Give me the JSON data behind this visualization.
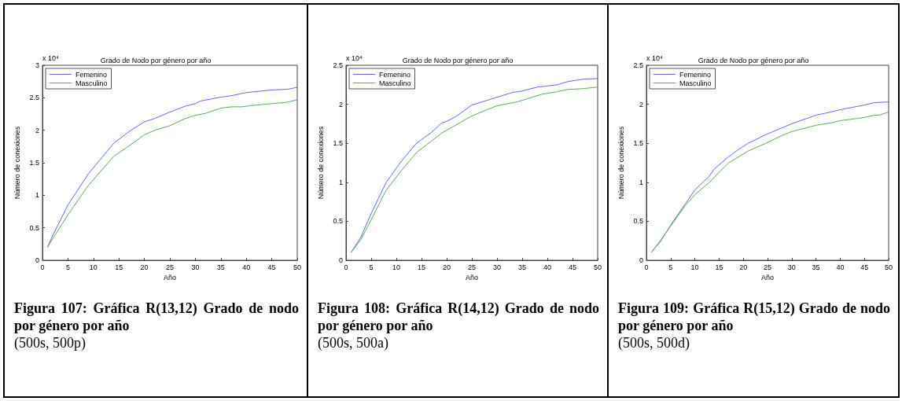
{
  "chart_data": [
    {
      "type": "line",
      "title": "Grado de Nodo por género por año",
      "xlabel": "Año",
      "ylabel": "Número de conexiones",
      "annotations": [
        "x 10⁴",
        "Figura 107: Gráfica R(13,12) Grado de nodo por género por año",
        "(500s, 500p)"
      ],
      "xlim": [
        0,
        50
      ],
      "xticks": [
        0,
        5,
        10,
        15,
        20,
        25,
        30,
        35,
        40,
        45,
        50
      ],
      "ylim": [
        0,
        3
      ],
      "yticks": [
        0,
        0.5,
        1,
        1.5,
        2,
        2.5,
        3
      ],
      "legend": "top left",
      "grid": false,
      "series": [
        {
          "name": "Femenino",
          "color": "#6666ff",
          "x": [
            1,
            2,
            5,
            9,
            14,
            17,
            20,
            22,
            25,
            28,
            30,
            31,
            35,
            37,
            40,
            45,
            48,
            50
          ],
          "values": [
            0.2,
            0.38,
            0.85,
            1.33,
            1.8,
            1.98,
            2.13,
            2.18,
            2.28,
            2.37,
            2.41,
            2.45,
            2.51,
            2.53,
            2.58,
            2.62,
            2.63,
            2.66
          ]
        },
        {
          "name": "Masculino",
          "color": "#55b055",
          "x": [
            1,
            2,
            5,
            9,
            14,
            17,
            20,
            22,
            25,
            28,
            30,
            32,
            35,
            37,
            39,
            41,
            45,
            48,
            50
          ],
          "values": [
            0.2,
            0.33,
            0.7,
            1.15,
            1.6,
            1.76,
            1.93,
            2.0,
            2.07,
            2.18,
            2.23,
            2.26,
            2.34,
            2.36,
            2.36,
            2.38,
            2.41,
            2.43,
            2.47
          ]
        }
      ]
    },
    {
      "type": "line",
      "title": "Grado de Nodo por género por año",
      "xlabel": "Año",
      "ylabel": "Número de conexiones",
      "annotations": [
        "x 10⁴",
        "Figura 108: Gráfica R(14,12) Grado de nodo por género por año",
        "(500s, 500a)"
      ],
      "xlim": [
        0,
        50
      ],
      "xticks": [
        0,
        5,
        10,
        15,
        20,
        25,
        30,
        35,
        40,
        45,
        50
      ],
      "ylim": [
        0,
        2.5
      ],
      "yticks": [
        0,
        0.5,
        1,
        1.5,
        2,
        2.5
      ],
      "legend": "top left",
      "grid": false,
      "series": [
        {
          "name": "Femenino",
          "color": "#6666ff",
          "x": [
            1,
            3,
            5,
            8,
            11,
            14,
            17,
            19,
            20,
            22,
            25,
            27,
            30,
            33,
            35,
            38,
            42,
            44,
            47,
            50
          ],
          "values": [
            0.1,
            0.3,
            0.6,
            1.0,
            1.27,
            1.5,
            1.64,
            1.76,
            1.78,
            1.85,
            1.99,
            2.03,
            2.09,
            2.15,
            2.17,
            2.22,
            2.25,
            2.29,
            2.32,
            2.33
          ]
        },
        {
          "name": "Masculino",
          "color": "#55b055",
          "x": [
            1,
            3,
            5,
            8,
            11,
            14,
            17,
            19,
            22,
            25,
            28,
            30,
            34,
            36,
            39,
            42,
            44,
            47,
            50
          ],
          "values": [
            0.1,
            0.27,
            0.52,
            0.9,
            1.15,
            1.38,
            1.53,
            1.63,
            1.74,
            1.85,
            1.93,
            1.98,
            2.03,
            2.07,
            2.13,
            2.16,
            2.19,
            2.2,
            2.22
          ]
        }
      ]
    },
    {
      "type": "line",
      "title": "Grado de Nodo por género por año",
      "xlabel": "Año",
      "ylabel": "Número de conexiones",
      "annotations": [
        "x 10⁴",
        "Figura 109: Gráfica R(15,12) Grado de nodo por género por año",
        "(500s, 500d)"
      ],
      "xlim": [
        0,
        50
      ],
      "xticks": [
        0,
        5,
        10,
        15,
        20,
        25,
        30,
        35,
        40,
        45,
        50
      ],
      "ylim": [
        0,
        2.5
      ],
      "yticks": [
        0,
        0.5,
        1,
        1.5,
        2,
        2.5
      ],
      "legend": "top left",
      "grid": false,
      "series": [
        {
          "name": "Femenino",
          "color": "#6666ff",
          "x": [
            1,
            3,
            5,
            8,
            10,
            13,
            14,
            17,
            19,
            21,
            25,
            30,
            35,
            38,
            40,
            45,
            47,
            50
          ],
          "values": [
            0.1,
            0.25,
            0.45,
            0.72,
            0.9,
            1.08,
            1.17,
            1.33,
            1.42,
            1.5,
            1.62,
            1.75,
            1.86,
            1.9,
            1.93,
            1.99,
            2.02,
            2.03
          ]
        },
        {
          "name": "Masculino",
          "color": "#55b055",
          "x": [
            1,
            3,
            5,
            8,
            10,
            13,
            15,
            17,
            21,
            25,
            28,
            30,
            35,
            38,
            40,
            45,
            47,
            48,
            50
          ],
          "values": [
            0.1,
            0.26,
            0.44,
            0.7,
            0.84,
            1.0,
            1.13,
            1.25,
            1.4,
            1.51,
            1.6,
            1.65,
            1.73,
            1.76,
            1.79,
            1.83,
            1.86,
            1.86,
            1.9
          ]
        }
      ]
    }
  ]
}
